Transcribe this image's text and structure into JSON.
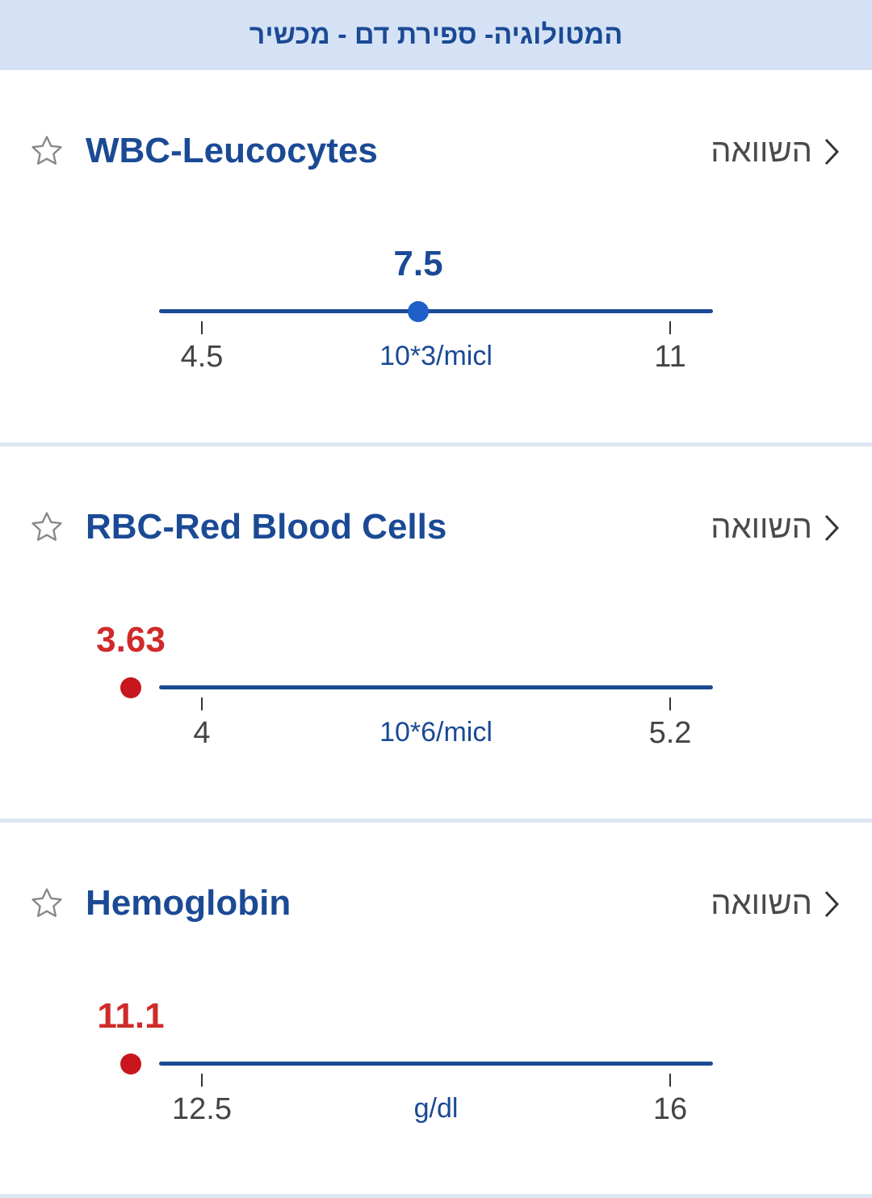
{
  "header": {
    "title": "המטולוגיה- ספירת דם - מכשיר"
  },
  "tests": [
    {
      "name": "WBC-Leucocytes",
      "compare_label": "השוואה",
      "value": "7.5",
      "range_low": "4.5",
      "range_high": "11",
      "unit": "10*3/micl",
      "status": "normal",
      "fraction": 0.465
    },
    {
      "name": "RBC-Red Blood Cells",
      "compare_label": "השוואה",
      "value": "3.63",
      "range_low": "4",
      "range_high": "5.2",
      "unit": "10*6/micl",
      "status": "low",
      "fraction": -0.152
    },
    {
      "name": "Hemoglobin",
      "compare_label": "השוואה",
      "value": "11.1",
      "range_low": "12.5",
      "range_high": "16",
      "unit": "g/dl",
      "status": "low",
      "fraction": -0.152
    }
  ],
  "colors": {
    "normal": "#1b4a95",
    "normal_dot": "#1e5fc8",
    "low": "#d02a2a",
    "low_dot": "#c8161e"
  },
  "icons": {
    "favorite": "star-outline-icon",
    "compare": "chevron-right-icon"
  }
}
